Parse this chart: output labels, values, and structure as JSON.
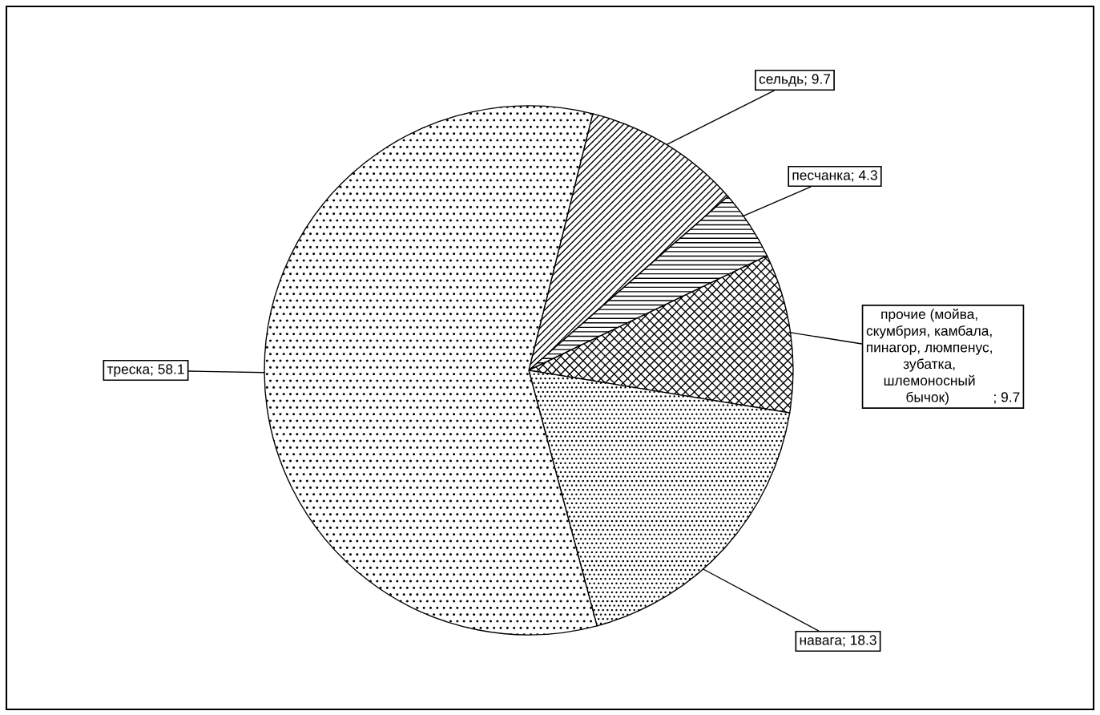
{
  "chart_data": {
    "type": "pie",
    "categories": [
      "сельдь",
      "песчанка",
      "прочие (мойва,\nскумбрия, камбала,\nпинагор, люмпенус,\nзубатка,\nшлемоносный\nбычок) ",
      "навага",
      "треска"
    ],
    "values": [
      9.7,
      4.3,
      9.7,
      18.3,
      58.1
    ],
    "value_labels": [
      "; 9.7",
      "; 4.3",
      "; 9.7",
      "; 18.3",
      "; 58.1"
    ]
  }
}
